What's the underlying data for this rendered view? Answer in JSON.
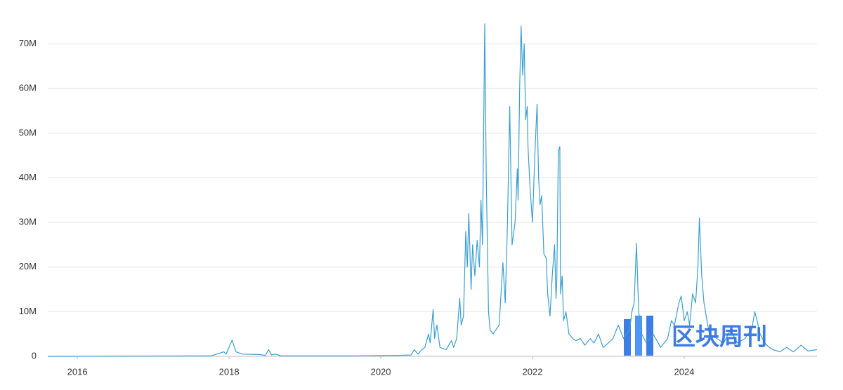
{
  "chart_data": {
    "type": "line",
    "x": [
      2015.61,
      2017.76,
      2017.93,
      2017.96,
      2018.04,
      2018.09,
      2018.18,
      2018.41,
      2018.48,
      2018.52,
      2018.56,
      2018.61,
      2018.69,
      2019.61,
      2020.17,
      2020.4,
      2020.44,
      2020.49,
      2020.54,
      2020.58,
      2020.63,
      2020.65,
      2020.69,
      2020.71,
      2020.74,
      2020.78,
      2020.86,
      2020.93,
      2020.96,
      2021.0,
      2021.04,
      2021.06,
      2021.09,
      2021.12,
      2021.14,
      2021.16,
      2021.19,
      2021.21,
      2021.24,
      2021.27,
      2021.3,
      2021.32,
      2021.34,
      2021.37,
      2021.39,
      2021.42,
      2021.44,
      2021.48,
      2021.52,
      2021.56,
      2021.61,
      2021.64,
      2021.67,
      2021.7,
      2021.73,
      2021.77,
      2021.8,
      2021.81,
      2021.83,
      2021.85,
      2021.87,
      2021.89,
      2021.91,
      2021.93,
      2021.94,
      2021.97,
      2022.0,
      2022.03,
      2022.06,
      2022.08,
      2022.1,
      2022.12,
      2022.15,
      2022.18,
      2022.2,
      2022.23,
      2022.26,
      2022.29,
      2022.31,
      2022.32,
      2022.34,
      2022.36,
      2022.37,
      2022.39,
      2022.41,
      2022.44,
      2022.48,
      2022.53,
      2022.57,
      2022.63,
      2022.69,
      2022.76,
      2022.81,
      2022.87,
      2022.93,
      2023.0,
      2023.06,
      2023.13,
      2023.2,
      2023.28,
      2023.31,
      2023.34,
      2023.37,
      2023.4,
      2023.44,
      2023.5,
      2023.59,
      2023.69,
      2023.78,
      2023.83,
      2023.87,
      2023.93,
      2023.96,
      2024.0,
      2024.04,
      2024.07,
      2024.11,
      2024.15,
      2024.18,
      2024.2,
      2024.23,
      2024.26,
      2024.3,
      2024.33,
      2024.43,
      2024.52,
      2024.61,
      2024.7,
      2024.8,
      2024.89,
      2024.93,
      2024.96,
      2025.0,
      2025.06,
      2025.12,
      2025.17,
      2025.26,
      2025.35,
      2025.44,
      2025.54,
      2025.63,
      2025.75
    ],
    "values": [
      0,
      100000,
      1000000,
      500000,
      3600000,
      1000000,
      500000,
      400000,
      200000,
      1500000,
      300000,
      500000,
      100000,
      100000,
      200000,
      300000,
      1500000,
      500000,
      1500000,
      2000000,
      5000000,
      3000000,
      10500000,
      4000000,
      7000000,
      2000000,
      1500000,
      3500000,
      2000000,
      4000000,
      13000000,
      7000000,
      9000000,
      28000000,
      20000000,
      32000000,
      15000000,
      25000000,
      18000000,
      26000000,
      20000000,
      35000000,
      25000000,
      74500000,
      40000000,
      10000000,
      6000000,
      5000000,
      6000000,
      7000000,
      21000000,
      12000000,
      30000000,
      56000000,
      25000000,
      30000000,
      42000000,
      35000000,
      60000000,
      74000000,
      63000000,
      70000000,
      53000000,
      56000000,
      47000000,
      37000000,
      30000000,
      45000000,
      56500000,
      40000000,
      34000000,
      36000000,
      23000000,
      22000000,
      14000000,
      9000000,
      18000000,
      25000000,
      13000000,
      17000000,
      46000000,
      47000000,
      14000000,
      18000000,
      8000000,
      10000000,
      5000000,
      4000000,
      3500000,
      4000000,
      2500000,
      4000000,
      3000000,
      5000000,
      2000000,
      3000000,
      4000000,
      7000000,
      4000000,
      6000000,
      10000000,
      12000000,
      25300000,
      10000000,
      5000000,
      3000000,
      5000000,
      2000000,
      4000000,
      8000000,
      7000000,
      12000000,
      13500000,
      8000000,
      10000000,
      7000000,
      14000000,
      12000000,
      20000000,
      31000000,
      18000000,
      12000000,
      8000000,
      5000000,
      4000000,
      3000000,
      6000000,
      3000000,
      4000000,
      6000000,
      10000000,
      8000000,
      5000000,
      3000000,
      2000000,
      1500000,
      1000000,
      2000000,
      1000000,
      2500000,
      1200000,
      1500000
    ],
    "color": "#3a9fcf",
    "xlim": [
      2015.61,
      2025.75
    ],
    "xticks": [
      2016,
      2018,
      2020,
      2022,
      2024
    ],
    "ylim": [
      0,
      74500000
    ],
    "yticks": [
      {
        "value": 0,
        "label": "0"
      },
      {
        "value": 10000000,
        "label": "10M"
      },
      {
        "value": 20000000,
        "label": "20M"
      },
      {
        "value": 30000000,
        "label": "30M"
      },
      {
        "value": 40000000,
        "label": "40M"
      },
      {
        "value": 50000000,
        "label": "50M"
      },
      {
        "value": 60000000,
        "label": "60M"
      },
      {
        "value": 70000000,
        "label": "70M"
      }
    ],
    "grid": true,
    "watermark": "区块周刊"
  }
}
